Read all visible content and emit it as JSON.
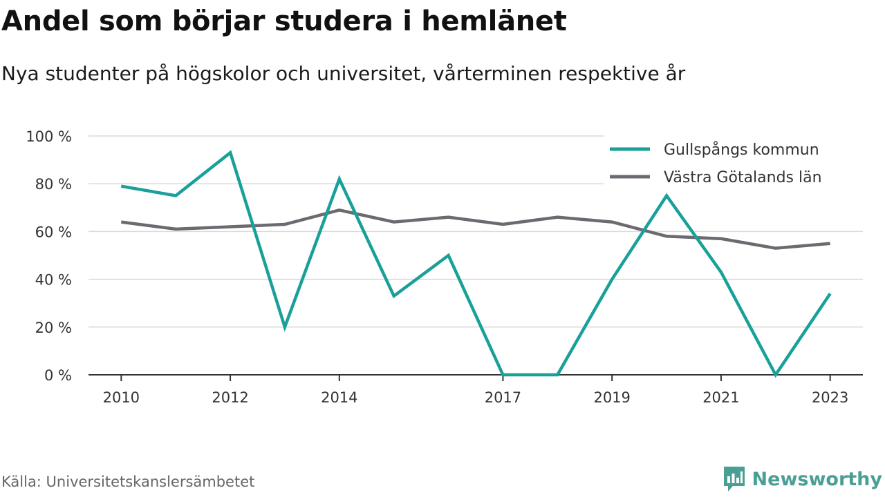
{
  "title": "Andel som börjar studera i hemlänet",
  "subtitle": "Nya studenter på högskolor och universitet, vårterminen respektive år",
  "source": "Källa: Universitetskanslersämbetet",
  "brand": {
    "name": "Newsworthy",
    "color": "#4a9f94",
    "icon": "newsworthy-logo-icon"
  },
  "chart_data": {
    "type": "line",
    "x": [
      2010,
      2011,
      2012,
      2013,
      2014,
      2015,
      2016,
      2017,
      2018,
      2019,
      2020,
      2021,
      2022,
      2023
    ],
    "x_tick_values": [
      2010,
      2012,
      2014,
      2017,
      2019,
      2021,
      2023
    ],
    "x_tick_labels": [
      "2010",
      "2012",
      "2014",
      "2017",
      "2019",
      "2021",
      "2023"
    ],
    "y_tick_values": [
      0,
      20,
      40,
      60,
      80,
      100
    ],
    "y_tick_labels": [
      "0 %",
      "20 %",
      "40 %",
      "60 %",
      "80 %",
      "100 %"
    ],
    "ylim": [
      0,
      100
    ],
    "xlim": [
      2009.4,
      2023.6
    ],
    "grid": "horizontal",
    "legend_position": "top-right",
    "series": [
      {
        "name": "Gullspångs kommun",
        "color": "#18a099",
        "values": [
          79,
          75,
          93,
          20,
          82,
          33,
          50,
          0,
          0,
          40,
          75,
          43,
          0,
          34
        ]
      },
      {
        "name": "Västra Götalands län",
        "color": "#6c6a70",
        "values": [
          64,
          61,
          62,
          63,
          69,
          64,
          66,
          63,
          66,
          64,
          58,
          57,
          53,
          55
        ]
      }
    ]
  }
}
